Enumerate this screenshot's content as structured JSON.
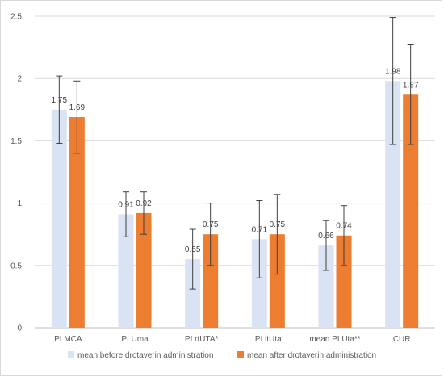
{
  "chart_data": {
    "type": "bar",
    "title": "",
    "xlabel": "",
    "ylabel": "",
    "ylim": [
      0,
      2.5
    ],
    "yticks": [
      "0",
      "0.5",
      "1",
      "1.5",
      "2",
      "2.5"
    ],
    "categories": [
      "PI MCA",
      "PI Uma",
      "PI rtUTA*",
      "PI ltUta",
      "mean PI Uta**",
      "CUR"
    ],
    "series": [
      {
        "name": "mean before drotaverin administration",
        "color": "#dae3f3",
        "values": [
          1.75,
          0.91,
          0.55,
          0.71,
          0.66,
          1.98
        ],
        "labels": [
          "1.75",
          "0.91",
          "0.55",
          "0.71",
          "0.66",
          "1.98"
        ],
        "err_low": [
          1.48,
          0.73,
          0.31,
          0.4,
          0.46,
          1.47
        ],
        "err_high": [
          2.02,
          1.09,
          0.79,
          1.02,
          0.86,
          2.49
        ]
      },
      {
        "name": "mean after drotaverin administration",
        "color": "#ed7d31",
        "values": [
          1.69,
          0.92,
          0.75,
          0.75,
          0.74,
          1.87
        ],
        "labels": [
          "1.69",
          "0.92",
          "0.75",
          "0.75",
          "0.74",
          "1.87"
        ],
        "err_low": [
          1.4,
          0.75,
          0.5,
          0.43,
          0.5,
          1.47
        ],
        "err_high": [
          1.98,
          1.09,
          1.0,
          1.07,
          0.98,
          2.27
        ]
      }
    ],
    "grid": "horizontal",
    "legend": "bottom"
  }
}
